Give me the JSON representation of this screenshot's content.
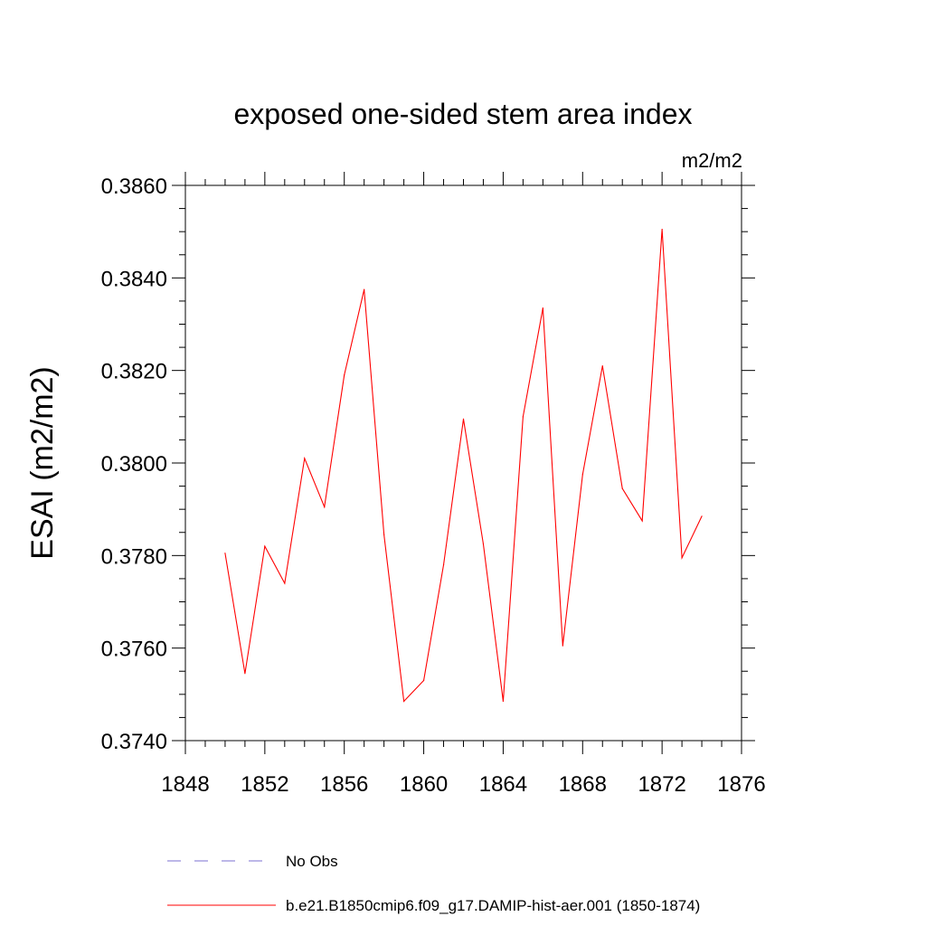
{
  "chart_data": {
    "type": "line",
    "title": "exposed one-sided stem area index",
    "units_label": "m2/m2",
    "ylabel": "ESAI  (m2/m2)",
    "xlabel": "",
    "xlim": [
      1848,
      1876
    ],
    "ylim": [
      0.374,
      0.386
    ],
    "x_ticks": [
      "1848",
      "1852",
      "1856",
      "1860",
      "1864",
      "1868",
      "1872",
      "1876"
    ],
    "y_ticks": [
      "0.3740",
      "0.3760",
      "0.3780",
      "0.3800",
      "0.3820",
      "0.3840",
      "0.3860"
    ],
    "legend": [
      {
        "label": "No Obs",
        "color": "#7b6fd0",
        "style": "dashed"
      },
      {
        "label": "b.e21.B1850cmip6.f09_g17.DAMIP-hist-aer.001 (1850-1874)",
        "color": "#ff0000",
        "style": "solid"
      }
    ],
    "series": [
      {
        "name": "b.e21.B1850cmip6.f09_g17.DAMIP-hist-aer.001 (1850-1874)",
        "color": "#ff0000",
        "x": [
          1850,
          1851,
          1852,
          1853,
          1854,
          1855,
          1856,
          1857,
          1858,
          1859,
          1860,
          1861,
          1862,
          1863,
          1864,
          1865,
          1866,
          1867,
          1868,
          1869,
          1870,
          1871,
          1872,
          1873,
          1874
        ],
        "values": [
          0.37805,
          0.37545,
          0.3782,
          0.3774,
          0.3801,
          0.37905,
          0.3819,
          0.38375,
          0.37845,
          0.37485,
          0.3753,
          0.3778,
          0.38095,
          0.37825,
          0.37485,
          0.381,
          0.38335,
          0.37605,
          0.37975,
          0.3821,
          0.37945,
          0.37875,
          0.38505,
          0.37795,
          0.37885
        ]
      }
    ]
  }
}
